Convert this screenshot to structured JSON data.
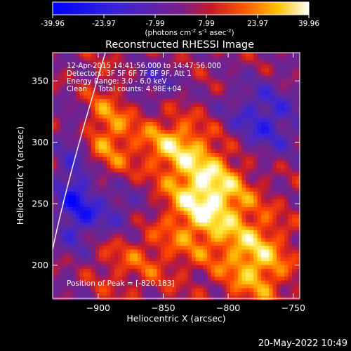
{
  "colorbar": {
    "ticks": [
      "-39.96",
      "-23.97",
      "-7.99",
      "7.99",
      "23.97",
      "39.96"
    ],
    "unit_label_parts": [
      "(photons cm",
      "-2",
      " s",
      "-1",
      " asec",
      "-2",
      ")"
    ]
  },
  "chart_data": {
    "type": "heatmap",
    "title": "Reconstructed RHESSI Image",
    "xlabel": "Heliocentric X (arcsec)",
    "ylabel": "Heliocentric Y (arcsec)",
    "xlim": [
      -935,
      -745
    ],
    "ylim": [
      173,
      373
    ],
    "xticks": [
      -900,
      -850,
      -800,
      -750
    ],
    "yticks": [
      200,
      250,
      300,
      350
    ],
    "x_tick_labels": [
      "−900",
      "−850",
      "−800",
      "−750"
    ],
    "y_tick_labels": [
      "200",
      "250",
      "300",
      "350"
    ],
    "colorscale_range": [
      -39.96,
      39.96
    ],
    "peak": {
      "x": -820,
      "y": 183
    },
    "info_lines": [
      "12-Apr-2015 14:41:56.000 to 14:47:56.000",
      "Detectors: 3F 5F 6F 7F 8F 9F, Att 1",
      "Energy Range: 3.0 - 6.0 keV",
      "Clean     Total counts: 4.98E+04"
    ],
    "peak_label": "Position of Peak = [-820,183]",
    "timestamp": "20-May-2022 10:49"
  }
}
